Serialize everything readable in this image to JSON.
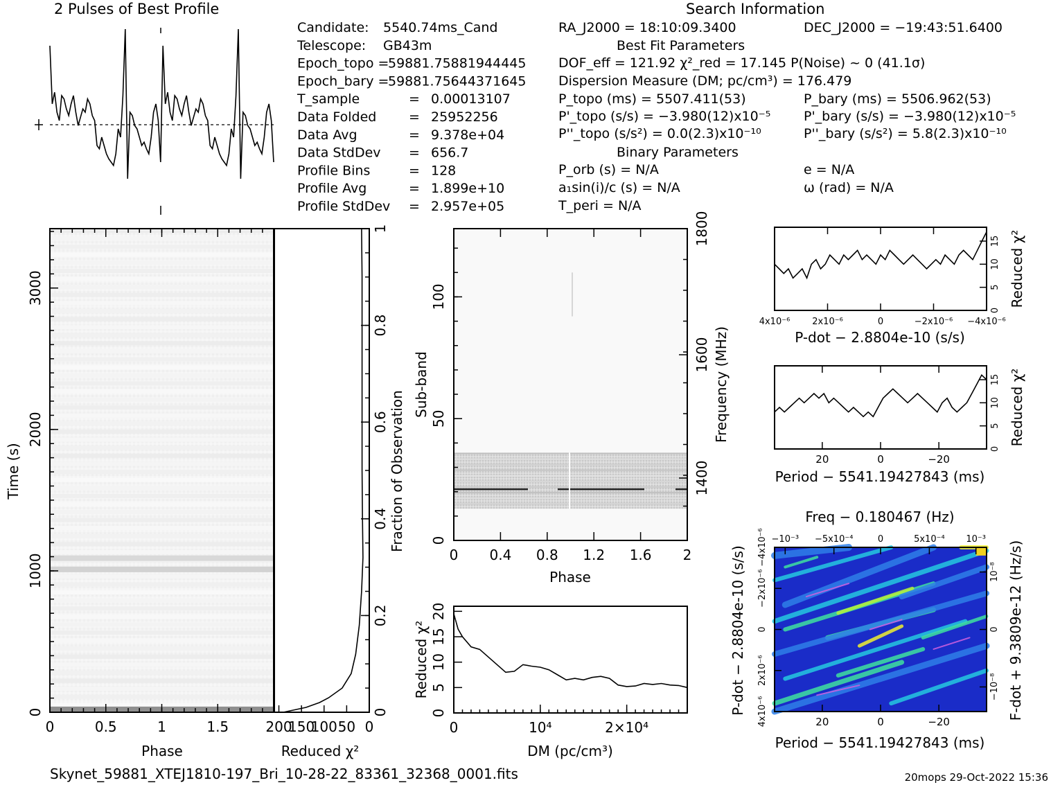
{
  "titles": {
    "profile": "2 Pulses of Best Profile",
    "search": "Search Information",
    "best_fit": "Best Fit Parameters",
    "binary": "Binary Parameters"
  },
  "info_left": [
    {
      "label": "Candidate:",
      "value": "5540.74ms_Cand"
    },
    {
      "label": "Telescope:",
      "value": "GB43m"
    },
    {
      "label": "Epoch_topo =",
      "value": "59881.75881944445"
    },
    {
      "label": "Epoch_bary =",
      "value": "59881.75644371645"
    },
    {
      "label": "T_sample",
      "value": "0.00013107"
    },
    {
      "label": "Data Folded",
      "value": "25952256"
    },
    {
      "label": "Data Avg",
      "value": "9.378e+04"
    },
    {
      "label": "Data StdDev",
      "value": "656.7"
    },
    {
      "label": "Profile Bins",
      "value": "128"
    },
    {
      "label": "Profile Avg",
      "value": "1.899e+10"
    },
    {
      "label": "Profile StdDev",
      "value": "2.957e+05"
    }
  ],
  "info_mid": {
    "ra": "RA_J2000 = 18:10:09.3400",
    "dec": "DEC_J2000 = −19:43:51.6400",
    "dof_line": "DOF_eff = 121.92   χ²_red = 17.145   P(Noise) ~ 0   (41.1σ)",
    "dm_line": "Dispersion Measure (DM; pc/cm³) = 176.479",
    "ptopo": "P_topo (ms) =  5507.411(53)",
    "pbary": "P_bary (ms) =  5506.962(53)",
    "pdtopo": "P'_topo (s/s) = −3.980(12)x10⁻⁵",
    "pdbary": "P'_bary (s/s) = −3.980(12)x10⁻⁵",
    "pddtopo": "P''_topo (s/s²) = 0.0(2.3)x10⁻¹⁰",
    "pddbary": "P''_bary (s/s²) =  5.8(2.3)x10⁻¹⁰",
    "porb": "P_orb (s) = N/A",
    "ecc": "e = N/A",
    "a1": "a₁sin(i)/c (s) = N/A",
    "omega": "ω (rad) = N/A",
    "tperi": "T_peri = N/A"
  },
  "labels": {
    "phase": "Phase",
    "time": "Time (s)",
    "redchi": "Reduced χ²",
    "fraction": "Fraction of Observation",
    "subband": "Sub-band",
    "frequency": "Frequency (MHz)",
    "dm": "DM (pc/cm³)",
    "pdot_axis": "P-dot − 2.8804e-10 (s/s)",
    "period_axis": "Period − 5541.19427843 (ms)",
    "freq_axis": "Freq − 0.180467 (Hz)",
    "fdot_axis": "F-dot + 9.3809e-12 (Hz/s)",
    "pdot_axis_2": "P-dot − 2.8804e-10 (s/s)",
    "period_axis_2": "Period − 5541.19427843 (ms)",
    "period_axis_3": "Period − 5541.19427843 (ms)"
  },
  "footer": {
    "filename": "Skynet_59881_XTEJ1810-197_Bri_10-28-22_83361_32368_0001.fits",
    "stamp": "20mops 29-Oct-2022 15:36"
  },
  "chart_data": [
    {
      "type": "line",
      "name": "profile",
      "x_range": [
        0,
        2
      ],
      "note_shape": "two pulses of normalized profile, dashed mean line",
      "values": [
        0.9,
        0.55,
        0.62,
        0.5,
        0.45,
        0.6,
        0.58,
        0.52,
        0.48,
        0.55,
        0.6,
        0.5,
        0.42,
        0.47,
        0.52,
        0.5,
        0.58,
        0.55,
        0.48,
        0.45,
        0.3,
        0.28,
        0.35,
        0.3,
        0.25,
        0.22,
        0.2,
        0.18,
        0.25,
        0.4,
        0.35,
        0.6,
        1.0,
        0.1,
        0.5,
        0.48,
        0.42,
        0.4,
        0.35,
        0.3,
        0.32,
        0.28,
        0.25,
        0.35,
        0.5,
        0.55,
        0.45,
        0.2,
        0.9,
        0.55,
        0.62,
        0.5,
        0.45,
        0.6,
        0.58,
        0.52,
        0.48,
        0.55,
        0.6,
        0.5,
        0.42,
        0.47,
        0.52,
        0.5,
        0.58,
        0.55,
        0.48,
        0.45,
        0.3,
        0.28,
        0.35,
        0.3,
        0.25,
        0.22,
        0.2,
        0.18,
        0.25,
        0.4,
        0.35,
        0.6,
        1.0,
        0.1,
        0.5,
        0.48,
        0.42,
        0.4,
        0.35,
        0.3,
        0.32,
        0.28,
        0.25,
        0.35,
        0.5,
        0.55,
        0.45,
        0.2
      ]
    },
    {
      "type": "heatmap",
      "name": "time-phase",
      "xlabel": "Phase",
      "ylabel": "Time (s)",
      "x_range": [
        0,
        2
      ],
      "ylim": [
        0,
        3420
      ],
      "x_ticks": [
        "0",
        "0.5",
        "1",
        "1.5"
      ],
      "y_ticks": [
        "0",
        "1000",
        "2000",
        "3000"
      ],
      "bright_rows": [
        0,
        1000,
        1080
      ]
    },
    {
      "type": "line",
      "name": "reduced-chi2-vs-fraction",
      "xlabel": "Reduced χ²",
      "ylabel": "Fraction of Observation",
      "x_ticks": [
        "200",
        "150",
        "100",
        "50",
        "0"
      ],
      "y_ticks": [
        "0",
        "0.2",
        "0.4",
        "0.6",
        "0.8",
        "1"
      ],
      "fraction": [
        0,
        0.01,
        0.02,
        0.03,
        0.05,
        0.08,
        0.12,
        0.18,
        0.25,
        0.32,
        0.4,
        0.5,
        0.6,
        0.7,
        0.8,
        0.9,
        1.0
      ],
      "chi2": [
        190,
        140,
        110,
        90,
        60,
        40,
        30,
        22,
        17,
        14,
        15,
        16,
        16,
        16,
        16,
        16,
        17
      ]
    },
    {
      "type": "heatmap",
      "name": "subband-phase",
      "xlabel": "Phase",
      "ylabel": "Sub-band",
      "y2label": "Frequency (MHz)",
      "x_ticks": [
        "0",
        "0.4",
        "0.8",
        "1.2",
        "1.6",
        "2"
      ],
      "y_ticks": [
        "0",
        "50",
        "100"
      ],
      "y2_ticks": [
        "1400",
        "1600",
        "1800"
      ],
      "ylim": [
        0,
        128
      ],
      "active_band": [
        13,
        36
      ]
    },
    {
      "type": "line",
      "name": "dm-chi2",
      "xlabel": "DM (pc/cm³)",
      "ylabel": "Reduced χ²",
      "x_ticks": [
        "0",
        "10⁴",
        "2×10⁴"
      ],
      "y_ticks": [
        "0",
        "5",
        "10",
        "15",
        "20"
      ],
      "xlim": [
        0,
        27000
      ],
      "ylim": [
        0,
        21
      ],
      "x": [
        0,
        500,
        1000,
        2000,
        3000,
        4000,
        5000,
        6000,
        7000,
        8000,
        9000,
        10000,
        11000,
        12000,
        13000,
        14000,
        15000,
        16000,
        17000,
        18000,
        19000,
        20000,
        21000,
        22000,
        23000,
        24000,
        25000,
        26000,
        27000
      ],
      "y": [
        19.5,
        16.5,
        15,
        13,
        12.5,
        11,
        9.5,
        8,
        8.2,
        9.5,
        9.2,
        9,
        8.5,
        7.5,
        6.5,
        6.8,
        6.5,
        7,
        7.2,
        6.8,
        5.5,
        5.2,
        5.3,
        5.8,
        5.6,
        5.8,
        5.5,
        5.4,
        5.0
      ]
    },
    {
      "type": "line",
      "name": "pdot-chi2",
      "xlabel": "P-dot − 2.8804e-10 (s/s)",
      "ylabel": "Reduced χ²",
      "x_ticks": [
        "4x10⁻⁶",
        "2x10⁻⁶",
        "0",
        "−2x10⁻⁶",
        "−4x10⁻⁶"
      ],
      "y_ticks": [
        "0",
        "5",
        "10",
        "15"
      ],
      "ylim": [
        0,
        18
      ],
      "values": [
        10,
        9,
        8,
        9,
        7,
        8,
        9,
        7,
        10,
        11,
        9,
        10,
        12,
        11,
        10,
        12,
        11,
        12,
        13,
        11,
        12,
        11,
        10,
        12,
        11,
        13,
        12,
        11,
        10,
        11,
        12,
        11,
        10,
        9,
        10,
        11,
        10,
        12,
        11,
        10,
        12,
        13,
        12,
        11,
        13,
        15,
        17
      ]
    },
    {
      "type": "line",
      "name": "period-chi2",
      "xlabel": "Period − 5541.19427843 (ms)",
      "ylabel": "Reduced χ²",
      "x_ticks": [
        "20",
        "0",
        "−20"
      ],
      "y_ticks": [
        "0",
        "5",
        "10",
        "15"
      ],
      "ylim": [
        0,
        18
      ],
      "values": [
        8,
        9,
        8,
        9,
        10,
        11,
        10,
        11,
        12,
        11,
        12,
        10,
        11,
        10,
        9,
        8,
        9,
        8,
        7,
        8,
        7,
        9,
        11,
        12,
        13,
        12,
        11,
        10,
        11,
        12,
        11,
        10,
        9,
        8,
        10,
        11,
        9,
        8,
        9,
        10,
        12,
        14,
        16,
        15
      ]
    },
    {
      "type": "heatmap",
      "name": "p-pdot-plane",
      "xlabel": "Period − 5541.19427843 (ms)",
      "ylabel": "P-dot − 2.8804e-10 (s/s)",
      "x2label": "Freq − 0.180467 (Hz)",
      "y2label": "F-dot + 9.3809e-12 (Hz/s)",
      "x_ticks": [
        "20",
        "0",
        "−20"
      ],
      "x2_ticks": [
        "−10⁻³",
        "−5x10⁻⁴",
        "0",
        "5x10⁻⁴",
        "10⁻³"
      ],
      "y_ticks": [
        "4x10⁻⁶",
        "2x10⁻⁶",
        "0",
        "−2x10⁻⁶",
        "−4x10⁻⁶"
      ],
      "y2_ticks": [
        "10⁻⁸",
        "0",
        "−10⁻⁸"
      ]
    }
  ]
}
